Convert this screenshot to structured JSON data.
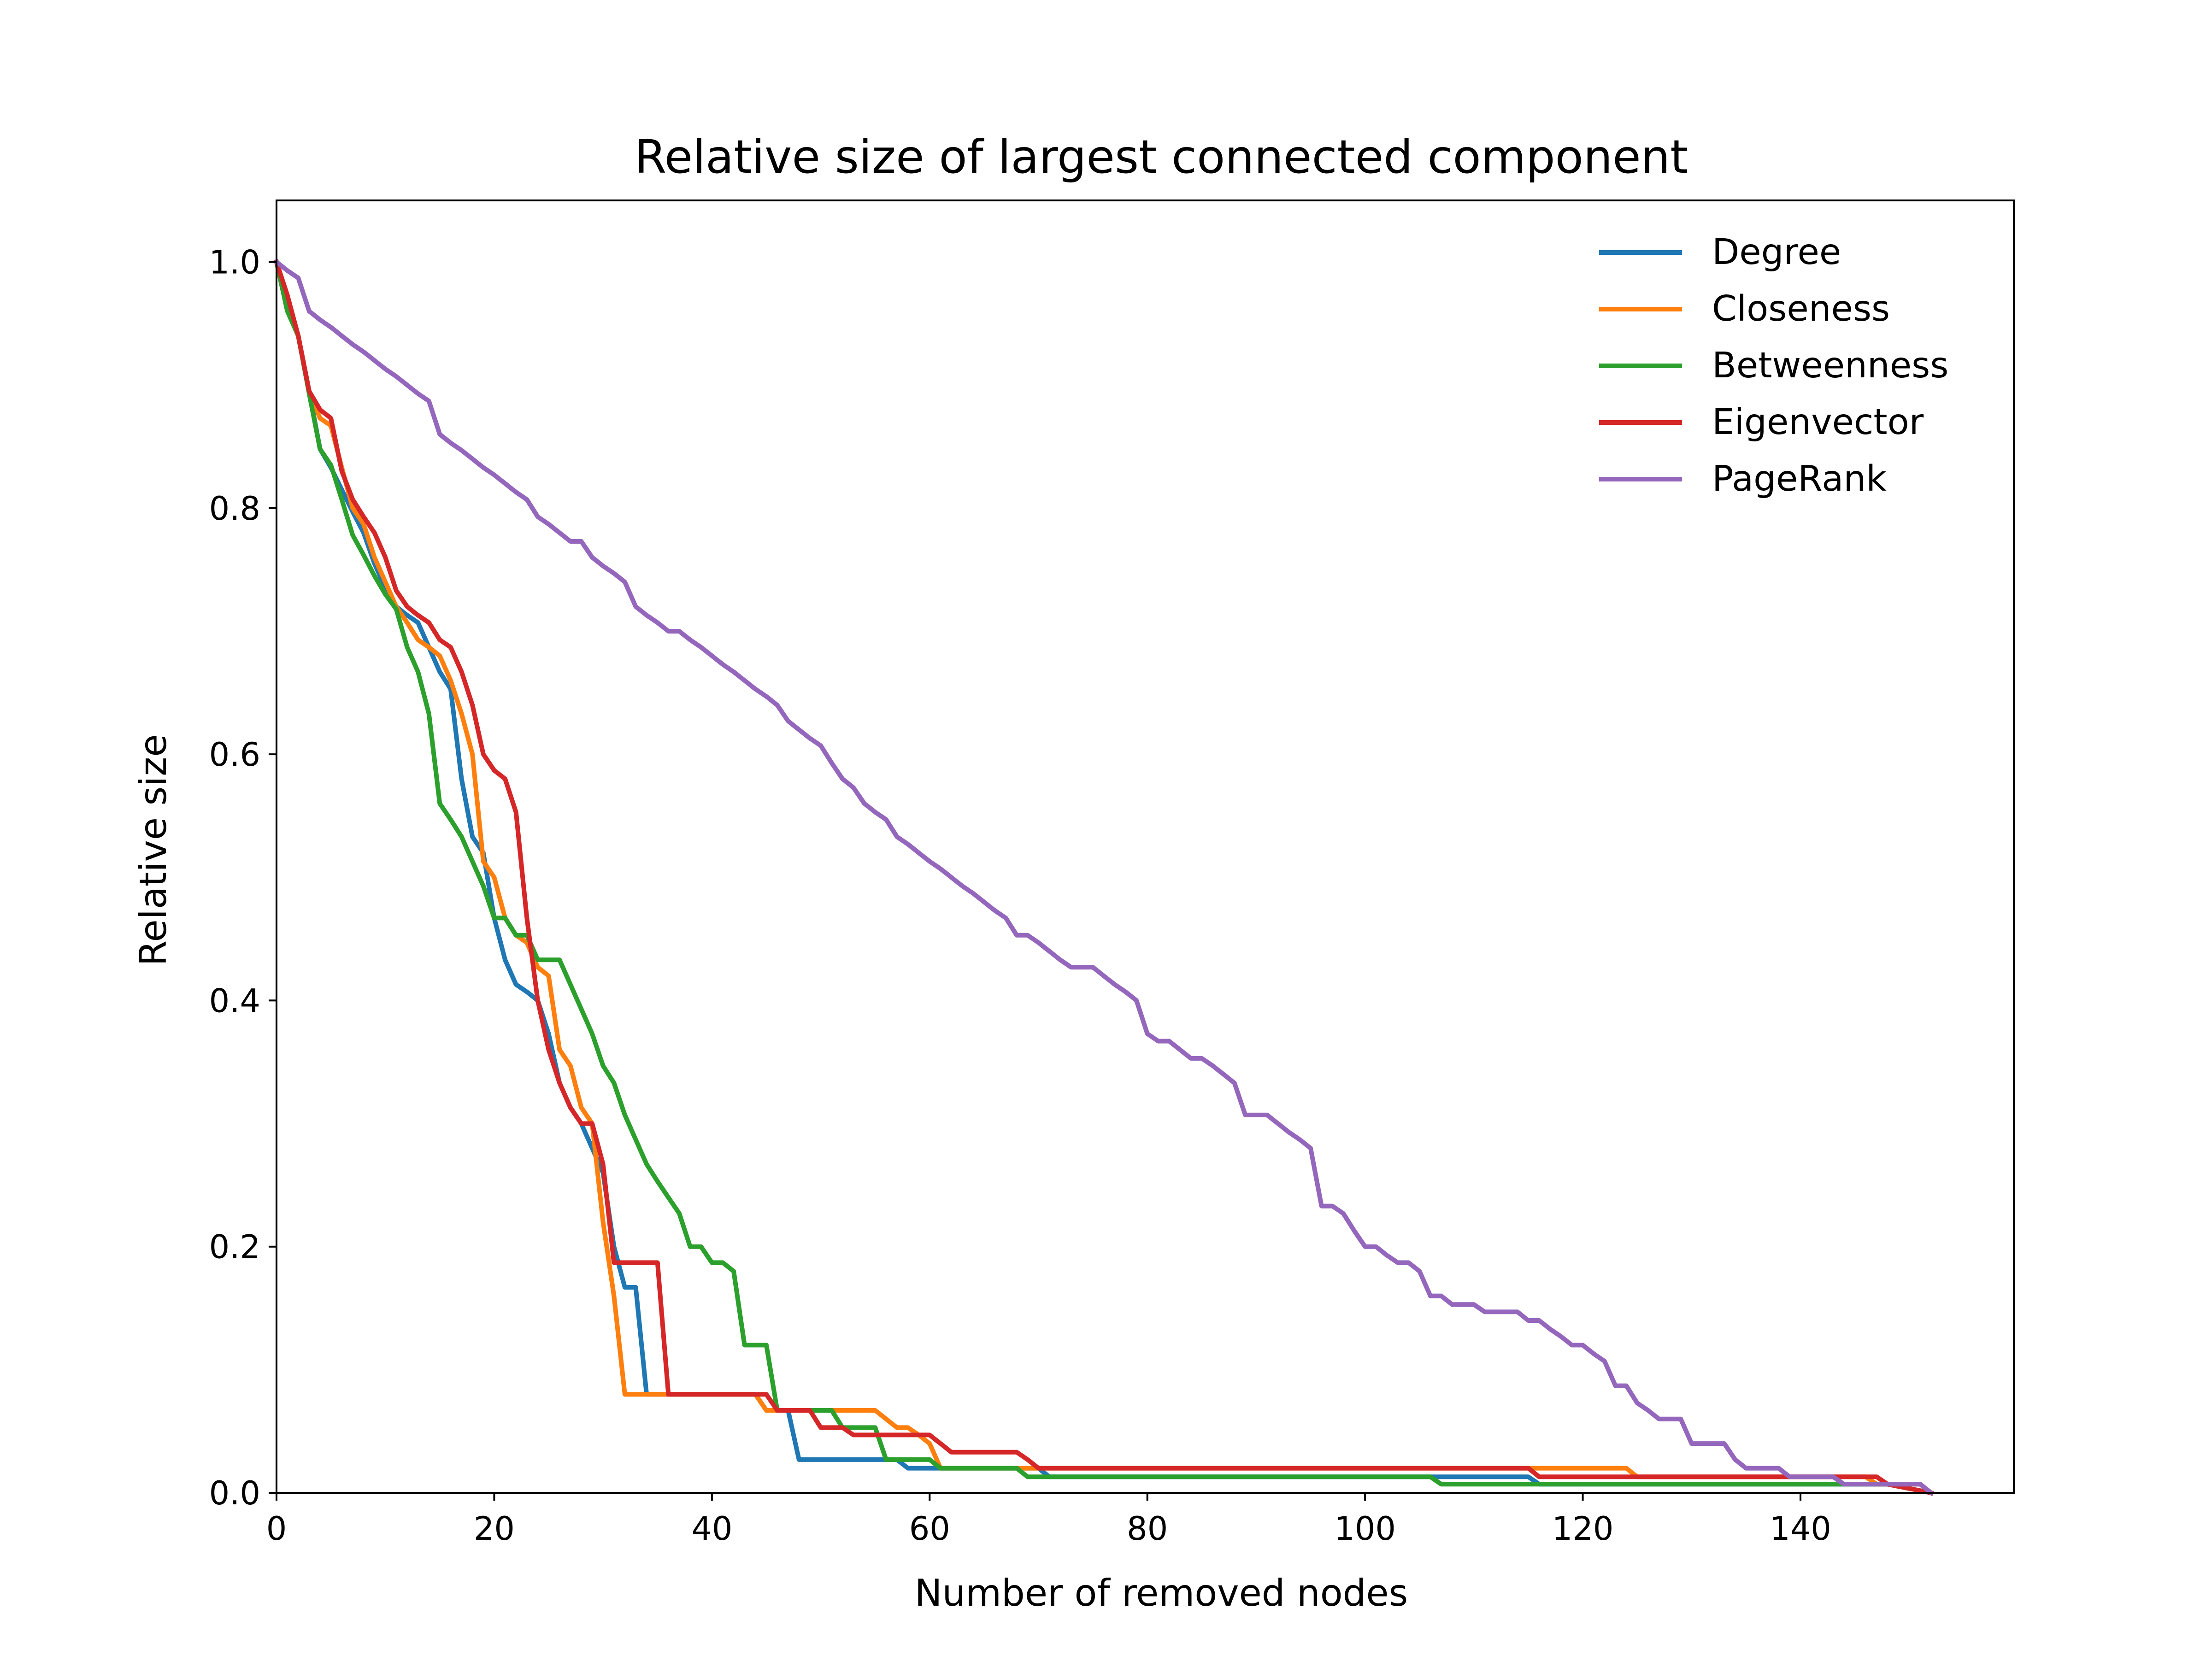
{
  "chart_data": {
    "type": "line",
    "title": "Relative size of largest connected component",
    "xlabel": "Number of removed nodes",
    "ylabel": "Relative size",
    "xlim": [
      0,
      159.6
    ],
    "ylim": [
      0,
      1.05
    ],
    "xticks": [
      0,
      20,
      40,
      60,
      80,
      100,
      120,
      140
    ],
    "xtick_labels": [
      "0",
      "20",
      "40",
      "60",
      "80",
      "100",
      "120",
      "140"
    ],
    "yticks": [
      0,
      0.2,
      0.4,
      0.6,
      0.8,
      1.0
    ],
    "ytick_labels": [
      "0.0",
      "0.2",
      "0.4",
      "0.6",
      "0.8",
      "1.0"
    ],
    "grid": false,
    "legend_position": "upper right",
    "series": [
      {
        "name": "Degree",
        "color": "#1f77b4",
        "x": [
          0,
          1,
          2,
          3,
          4,
          5,
          6,
          7,
          8,
          9,
          10,
          11,
          12,
          13,
          14,
          15,
          16,
          17,
          18,
          19,
          20,
          21,
          22,
          23,
          24,
          25,
          26,
          27,
          28,
          29,
          30,
          31,
          32,
          33,
          34,
          35,
          44,
          45,
          47,
          48,
          57,
          58,
          61,
          62,
          70,
          71,
          115,
          116,
          146,
          147,
          148,
          152
        ],
        "y": [
          1.0,
          0.97,
          0.94,
          0.895,
          0.848,
          0.833,
          0.815,
          0.797,
          0.78,
          0.755,
          0.735,
          0.72,
          0.713,
          0.707,
          0.687,
          0.667,
          0.653,
          0.58,
          0.533,
          0.52,
          0.467,
          0.433,
          0.413,
          0.407,
          0.4,
          0.373,
          0.333,
          0.313,
          0.3,
          0.28,
          0.26,
          0.2,
          0.167,
          0.167,
          0.08,
          0.08,
          0.08,
          0.067,
          0.067,
          0.027,
          0.027,
          0.02,
          0.02,
          0.02,
          0.02,
          0.013,
          0.013,
          0.007,
          0.007,
          0.007,
          0.007,
          0.0
        ]
      },
      {
        "name": "Closeness",
        "color": "#ff7f0e",
        "x": [
          0,
          1,
          2,
          3,
          4,
          5,
          6,
          7,
          8,
          9,
          10,
          11,
          12,
          13,
          14,
          15,
          16,
          17,
          18,
          19,
          20,
          21,
          22,
          23,
          24,
          25,
          26,
          27,
          28,
          29,
          30,
          31,
          32,
          33,
          34,
          35,
          44,
          45,
          54,
          55,
          57,
          58,
          59,
          60,
          61,
          62,
          69,
          70,
          124,
          125,
          146,
          147,
          148,
          151,
          152
        ],
        "y": [
          1.0,
          0.96,
          0.94,
          0.895,
          0.873,
          0.867,
          0.833,
          0.8,
          0.787,
          0.76,
          0.74,
          0.72,
          0.707,
          0.693,
          0.687,
          0.68,
          0.66,
          0.633,
          0.6,
          0.513,
          0.5,
          0.467,
          0.453,
          0.447,
          0.427,
          0.42,
          0.36,
          0.347,
          0.313,
          0.3,
          0.22,
          0.16,
          0.08,
          0.08,
          0.08,
          0.08,
          0.08,
          0.067,
          0.067,
          0.067,
          0.053,
          0.053,
          0.047,
          0.04,
          0.02,
          0.02,
          0.02,
          0.02,
          0.02,
          0.013,
          0.013,
          0.007,
          0.007,
          0.007,
          0.0
        ]
      },
      {
        "name": "Betweenness",
        "color": "#2ca02c",
        "x": [
          0,
          1,
          2,
          3,
          4,
          5,
          6,
          7,
          8,
          9,
          10,
          11,
          12,
          13,
          14,
          15,
          16,
          17,
          18,
          19,
          20,
          21,
          22,
          23,
          24,
          25,
          26,
          27,
          28,
          29,
          30,
          31,
          32,
          33,
          34,
          35,
          36,
          37,
          38,
          39,
          40,
          41,
          42,
          43,
          44,
          45,
          46,
          47,
          48,
          49,
          50,
          51,
          52,
          53,
          54,
          55,
          56,
          57,
          58,
          59,
          60,
          61,
          62,
          68,
          69,
          106,
          107,
          146,
          147,
          148,
          152
        ],
        "y": [
          1.0,
          0.96,
          0.94,
          0.893,
          0.848,
          0.835,
          0.807,
          0.778,
          0.762,
          0.745,
          0.73,
          0.718,
          0.687,
          0.667,
          0.633,
          0.56,
          0.547,
          0.533,
          0.513,
          0.493,
          0.467,
          0.467,
          0.453,
          0.453,
          0.433,
          0.433,
          0.433,
          0.413,
          0.393,
          0.373,
          0.347,
          0.333,
          0.307,
          0.287,
          0.267,
          0.253,
          0.24,
          0.227,
          0.2,
          0.2,
          0.187,
          0.187,
          0.18,
          0.12,
          0.12,
          0.12,
          0.067,
          0.067,
          0.067,
          0.067,
          0.067,
          0.067,
          0.053,
          0.053,
          0.053,
          0.053,
          0.027,
          0.027,
          0.027,
          0.027,
          0.027,
          0.02,
          0.02,
          0.02,
          0.013,
          0.013,
          0.007,
          0.007,
          0.007,
          0.007,
          0.0
        ]
      },
      {
        "name": "Eigenvector",
        "color": "#d62728",
        "x": [
          0,
          1,
          2,
          3,
          4,
          5,
          6,
          7,
          8,
          9,
          10,
          11,
          12,
          13,
          14,
          15,
          16,
          17,
          18,
          19,
          20,
          21,
          22,
          23,
          24,
          25,
          26,
          27,
          28,
          29,
          30,
          31,
          32,
          35,
          36,
          45,
          46,
          49,
          50,
          52,
          53,
          59,
          60,
          62,
          63,
          68,
          69,
          70,
          71,
          115,
          116,
          125,
          126,
          147,
          148,
          152
        ],
        "y": [
          1.0,
          0.973,
          0.94,
          0.895,
          0.88,
          0.873,
          0.83,
          0.807,
          0.793,
          0.78,
          0.76,
          0.733,
          0.72,
          0.713,
          0.707,
          0.693,
          0.687,
          0.667,
          0.64,
          0.6,
          0.587,
          0.58,
          0.553,
          0.467,
          0.4,
          0.36,
          0.333,
          0.313,
          0.3,
          0.3,
          0.267,
          0.187,
          0.187,
          0.187,
          0.08,
          0.08,
          0.067,
          0.067,
          0.053,
          0.053,
          0.047,
          0.047,
          0.047,
          0.033,
          0.033,
          0.033,
          0.027,
          0.02,
          0.02,
          0.02,
          0.013,
          0.013,
          0.013,
          0.013,
          0.007,
          0.0
        ]
      },
      {
        "name": "PageRank",
        "color": "#9467bd",
        "x": [
          0,
          1,
          2,
          3,
          4,
          5,
          6,
          7,
          8,
          9,
          10,
          11,
          12,
          13,
          14,
          15,
          16,
          17,
          18,
          19,
          20,
          21,
          22,
          23,
          24,
          25,
          26,
          27,
          28,
          29,
          30,
          31,
          32,
          33,
          34,
          35,
          36,
          37,
          38,
          39,
          40,
          41,
          42,
          43,
          44,
          45,
          46,
          47,
          48,
          49,
          50,
          51,
          52,
          53,
          54,
          55,
          56,
          57,
          58,
          59,
          60,
          61,
          62,
          63,
          64,
          65,
          66,
          67,
          68,
          69,
          70,
          71,
          72,
          73,
          74,
          75,
          76,
          77,
          78,
          79,
          80,
          81,
          82,
          83,
          84,
          85,
          86,
          87,
          88,
          89,
          90,
          91,
          92,
          93,
          94,
          95,
          96,
          97,
          98,
          99,
          100,
          101,
          102,
          103,
          104,
          105,
          106,
          107,
          108,
          109,
          110,
          111,
          112,
          113,
          114,
          115,
          116,
          117,
          118,
          119,
          120,
          121,
          122,
          123,
          124,
          125,
          126,
          127,
          128,
          129,
          130,
          131,
          132,
          133,
          134,
          135,
          136,
          137,
          138,
          139,
          140,
          141,
          142,
          143,
          144,
          145,
          146,
          147,
          148,
          149,
          150,
          151,
          152
        ],
        "y": [
          1.0,
          0.993,
          0.987,
          0.96,
          0.953,
          0.947,
          0.94,
          0.933,
          0.927,
          0.92,
          0.913,
          0.907,
          0.9,
          0.893,
          0.887,
          0.86,
          0.853,
          0.847,
          0.84,
          0.833,
          0.827,
          0.82,
          0.813,
          0.807,
          0.793,
          0.787,
          0.78,
          0.773,
          0.773,
          0.76,
          0.753,
          0.747,
          0.74,
          0.72,
          0.713,
          0.707,
          0.7,
          0.7,
          0.693,
          0.687,
          0.68,
          0.673,
          0.667,
          0.66,
          0.653,
          0.647,
          0.64,
          0.627,
          0.62,
          0.613,
          0.607,
          0.593,
          0.58,
          0.573,
          0.56,
          0.553,
          0.547,
          0.533,
          0.527,
          0.52,
          0.513,
          0.507,
          0.5,
          0.493,
          0.487,
          0.48,
          0.473,
          0.467,
          0.453,
          0.453,
          0.447,
          0.44,
          0.433,
          0.427,
          0.427,
          0.427,
          0.42,
          0.413,
          0.407,
          0.4,
          0.373,
          0.367,
          0.367,
          0.36,
          0.353,
          0.353,
          0.347,
          0.34,
          0.333,
          0.307,
          0.307,
          0.307,
          0.3,
          0.293,
          0.287,
          0.28,
          0.233,
          0.233,
          0.227,
          0.213,
          0.2,
          0.2,
          0.193,
          0.187,
          0.187,
          0.18,
          0.16,
          0.16,
          0.153,
          0.153,
          0.153,
          0.147,
          0.147,
          0.147,
          0.147,
          0.14,
          0.14,
          0.133,
          0.127,
          0.12,
          0.12,
          0.113,
          0.107,
          0.087,
          0.087,
          0.073,
          0.067,
          0.06,
          0.06,
          0.06,
          0.04,
          0.04,
          0.04,
          0.04,
          0.027,
          0.02,
          0.02,
          0.02,
          0.02,
          0.013,
          0.013,
          0.013,
          0.013,
          0.013,
          0.007,
          0.007,
          0.007,
          0.007,
          0.007,
          0.007,
          0.007,
          0.007,
          0.0
        ]
      }
    ]
  }
}
